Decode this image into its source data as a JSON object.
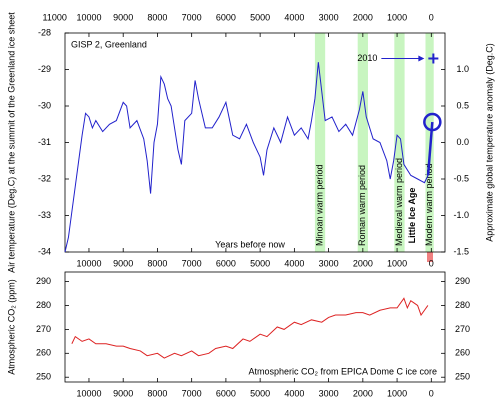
{
  "chart_data": [
    {
      "type": "line",
      "title": "GISP 2, Greenland",
      "xlabel": "Years before now",
      "ylabel": "Air temperature (Deg.C) at the summit of the Greenland ice sheet",
      "y2label": "Approximate global temperature anomaly (Deg.C)",
      "xlim": [
        10700,
        -400
      ],
      "xticks": [
        11000,
        10000,
        9000,
        8000,
        7000,
        6000,
        5000,
        4000,
        3000,
        2000,
        1000,
        0
      ],
      "ylim": [
        -34,
        -28
      ],
      "yticks": [
        -34,
        -33,
        -32,
        -31,
        -30,
        -29,
        -28
      ],
      "y2lim": [
        -1.5,
        1.5
      ],
      "y2ticks": [
        -1.5,
        {
          "value": -1,
          "label": "-1.0"
        },
        -0.5,
        {
          "value": 0,
          "label": "0.0"
        },
        0.5,
        {
          "value": 1,
          "label": "1.0"
        }
      ],
      "periods": [
        {
          "label": "Minoan warm period",
          "from": 3400,
          "to": 3100
        },
        {
          "label": "Roman warm period",
          "from": 2150,
          "to": 1850
        },
        {
          "label": "Medieval warm period",
          "from": 1080,
          "to": 780
        },
        {
          "label": "Modern warm period",
          "from": 170,
          "to": -70
        }
      ],
      "period_color": "#c8f5c0",
      "series": [
        {
          "color": "#2222cc",
          "linewidth": 1,
          "x": [
            10700,
            10600,
            10500,
            10400,
            10300,
            10200,
            10100,
            10000,
            9900,
            9800,
            9600,
            9400,
            9200,
            9000,
            8900,
            8800,
            8600,
            8400,
            8300,
            8200,
            8100,
            8000,
            7900,
            7800,
            7700,
            7600,
            7500,
            7400,
            7300,
            7200,
            7000,
            6900,
            6800,
            6600,
            6400,
            6200,
            6000,
            5800,
            5600,
            5400,
            5200,
            5000,
            4900,
            4800,
            4600,
            4400,
            4200,
            4000,
            3800,
            3600,
            3500,
            3400,
            3300,
            3200,
            3100,
            2900,
            2700,
            2500,
            2300,
            2100,
            2000,
            1900,
            1700,
            1500,
            1300,
            1200,
            1100,
            1000,
            900,
            800,
            600,
            400,
            200,
            95
          ],
          "values": [
            -34,
            -33.6,
            -32.9,
            -32.2,
            -31.5,
            -30.8,
            -30.2,
            -30.3,
            -30.6,
            -30.4,
            -30.7,
            -30.5,
            -30.4,
            -29.9,
            -30,
            -30.6,
            -30.4,
            -30.9,
            -31.5,
            -32.4,
            -31,
            -30.5,
            -29.2,
            -29.4,
            -29.8,
            -30,
            -30.6,
            -31.2,
            -31.6,
            -30.4,
            -30.2,
            -29.3,
            -29.8,
            -30.6,
            -30.6,
            -30.3,
            -29.9,
            -30.8,
            -30.9,
            -30.5,
            -31,
            -31.4,
            -31.9,
            -31.2,
            -30.6,
            -31,
            -30.3,
            -30.8,
            -30.6,
            -30.9,
            -30.4,
            -29.8,
            -28.8,
            -29.6,
            -30.4,
            -30.3,
            -30.7,
            -30.5,
            -30.8,
            -30.1,
            -29.6,
            -30.3,
            -30.9,
            -31,
            -31.5,
            -32,
            -31.5,
            -30.8,
            -30.9,
            -31.6,
            -31.9,
            -32,
            -32.1,
            -31.9
          ]
        },
        {
          "color": "#2222cc",
          "linewidth": 2.5,
          "x": [
            95,
            -30
          ],
          "values": [
            -31.9,
            -30.44
          ]
        }
      ],
      "annotations": [
        {
          "text": "2010",
          "x": -60,
          "y": -28.7,
          "color": "#2222cc"
        },
        {
          "text": "Little Ice Age",
          "x": 550,
          "y": -33,
          "color": "#2222cc"
        }
      ]
    },
    {
      "type": "line",
      "ylabel": "Atmospheric CO₂ (ppm)",
      "note": "Atmospheric CO₂ from EPICA Dome C ice core",
      "xlim": [
        10700,
        -400
      ],
      "xticks": [
        10000,
        9000,
        8000,
        7000,
        6000,
        5000,
        4000,
        3000,
        2000,
        1000,
        0
      ],
      "ylim": [
        248,
        294
      ],
      "yticks": [
        250,
        260,
        270,
        280,
        290
      ],
      "mirror_y": true,
      "series": [
        {
          "color": "#dd2222",
          "linewidth": 1,
          "x": [
            10500,
            10400,
            10200,
            10000,
            9800,
            9500,
            9200,
            9000,
            8800,
            8500,
            8300,
            8000,
            7800,
            7500,
            7300,
            7000,
            6800,
            6500,
            6300,
            6000,
            5800,
            5500,
            5300,
            5000,
            4800,
            4500,
            4300,
            4000,
            3800,
            3500,
            3200,
            3000,
            2800,
            2500,
            2200,
            2000,
            1800,
            1500,
            1200,
            1000,
            800,
            700,
            600,
            500,
            400,
            300,
            200,
            100
          ],
          "values": [
            264,
            267,
            265,
            266,
            264,
            264,
            263,
            263,
            262,
            261,
            259,
            260,
            258,
            260,
            259,
            261,
            259,
            260,
            262,
            263,
            262,
            266,
            265,
            268,
            267,
            271,
            270,
            273,
            272,
            274,
            273,
            275,
            276,
            276,
            277,
            277,
            276,
            278,
            279,
            279,
            283,
            279,
            282,
            281,
            280,
            276,
            278,
            280
          ]
        }
      ]
    }
  ]
}
